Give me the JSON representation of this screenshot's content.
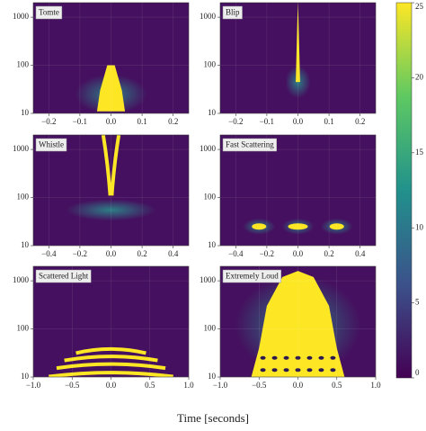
{
  "chart_data": [
    {
      "type": "heatmap",
      "title": "Tomte",
      "xlim": [
        -0.25,
        0.25
      ],
      "xticks": [
        {
          "value": -0.2,
          "label": "−0.2"
        },
        {
          "value": -0.1,
          "label": "−0.1"
        },
        {
          "value": 0,
          "label": "0.0"
        },
        {
          "value": 0.1,
          "label": "0.1"
        },
        {
          "value": 0.2,
          "label": "0.2"
        }
      ],
      "ylim": [
        10,
        2000
      ],
      "yticks": [
        10,
        100,
        1000
      ],
      "log_y": true
    },
    {
      "type": "heatmap",
      "title": "Blip",
      "xlim": [
        -0.25,
        0.25
      ],
      "xticks": [
        {
          "value": -0.2,
          "label": "−0.2"
        },
        {
          "value": -0.1,
          "label": "−0.1"
        },
        {
          "value": 0,
          "label": "0.0"
        },
        {
          "value": 0.1,
          "label": "0.1"
        },
        {
          "value": 0.2,
          "label": "0.2"
        }
      ],
      "ylim": [
        10,
        2000
      ],
      "yticks": [
        10,
        100,
        1000
      ],
      "log_y": true
    },
    {
      "type": "heatmap",
      "title": "Whistle",
      "xlim": [
        -0.5,
        0.5
      ],
      "xticks": [
        {
          "value": -0.4,
          "label": "−0.4"
        },
        {
          "value": -0.2,
          "label": "−0.2"
        },
        {
          "value": 0,
          "label": "0.0"
        },
        {
          "value": 0.2,
          "label": "0.2"
        },
        {
          "value": 0.4,
          "label": "0.4"
        }
      ],
      "ylim": [
        10,
        2000
      ],
      "yticks": [
        10,
        100,
        1000
      ],
      "log_y": true
    },
    {
      "type": "heatmap",
      "title": "Fast Scattering",
      "xlim": [
        -0.5,
        0.5
      ],
      "xticks": [
        {
          "value": -0.4,
          "label": "−0.4"
        },
        {
          "value": -0.2,
          "label": "−0.2"
        },
        {
          "value": 0,
          "label": "0.0"
        },
        {
          "value": 0.2,
          "label": "0.2"
        },
        {
          "value": 0.4,
          "label": "0.4"
        }
      ],
      "ylim": [
        10,
        2000
      ],
      "yticks": [
        10,
        100,
        1000
      ],
      "log_y": true
    },
    {
      "type": "heatmap",
      "title": "Scattered Light",
      "xlim": [
        -1,
        1
      ],
      "xticks": [
        {
          "value": -1,
          "label": "−1.0"
        },
        {
          "value": -0.5,
          "label": "−0.5"
        },
        {
          "value": 0,
          "label": "0.0"
        },
        {
          "value": 0.5,
          "label": "0.5"
        },
        {
          "value": 1,
          "label": "1.0"
        }
      ],
      "ylim": [
        10,
        2000
      ],
      "yticks": [
        10,
        100,
        1000
      ],
      "log_y": true
    },
    {
      "type": "heatmap",
      "title": "Extremely Loud",
      "xlim": [
        -1,
        1
      ],
      "xticks": [
        {
          "value": -1,
          "label": "−1.0"
        },
        {
          "value": -0.5,
          "label": "−0.5"
        },
        {
          "value": 0,
          "label": "0.0"
        },
        {
          "value": 0.5,
          "label": "0.5"
        },
        {
          "value": 1,
          "label": "1.0"
        }
      ],
      "ylim": [
        10,
        2000
      ],
      "yticks": [
        10,
        100,
        1000
      ],
      "log_y": true
    }
  ],
  "colorbar": {
    "lim": [
      0,
      25
    ],
    "ticks": [
      0,
      5,
      10,
      15,
      20,
      25
    ]
  },
  "xlabel": "Time [seconds]"
}
